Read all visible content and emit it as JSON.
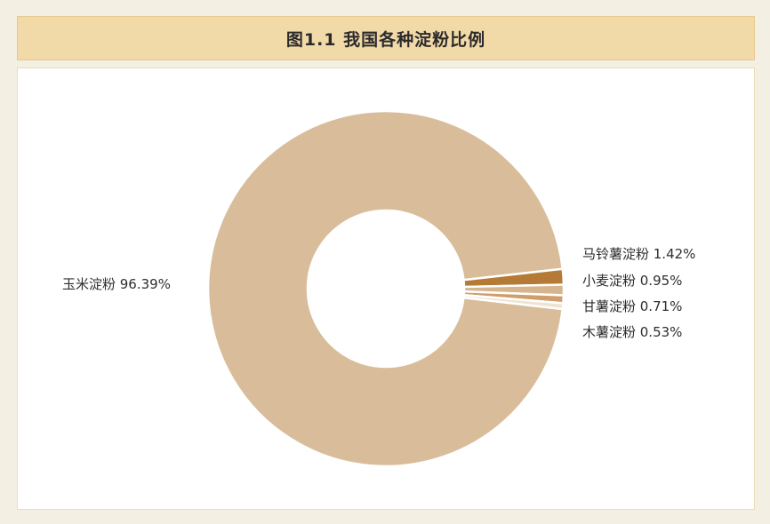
{
  "title": "图1.1 我国各种淀粉比例",
  "chart_data": {
    "type": "pie",
    "donut": true,
    "slices": [
      {
        "name": "玉米淀粉",
        "value": 96.39,
        "label": "玉米淀粉 96.39%",
        "color": "#d9bd9b"
      },
      {
        "name": "马铃薯淀粉",
        "value": 1.42,
        "label": "马铃薯淀粉 1.42%",
        "color": "#b47a36"
      },
      {
        "name": "小麦淀粉",
        "value": 0.95,
        "label": "小麦淀粉 0.95%",
        "color": "#d6b48e"
      },
      {
        "name": "甘薯淀粉",
        "value": 0.71,
        "label": "甘薯淀粉 0.71%",
        "color": "#cf9e6a"
      },
      {
        "name": "木薯淀粉",
        "value": 0.53,
        "label": "木薯淀粉 0.53%",
        "color": "#f0e2d0"
      }
    ]
  }
}
